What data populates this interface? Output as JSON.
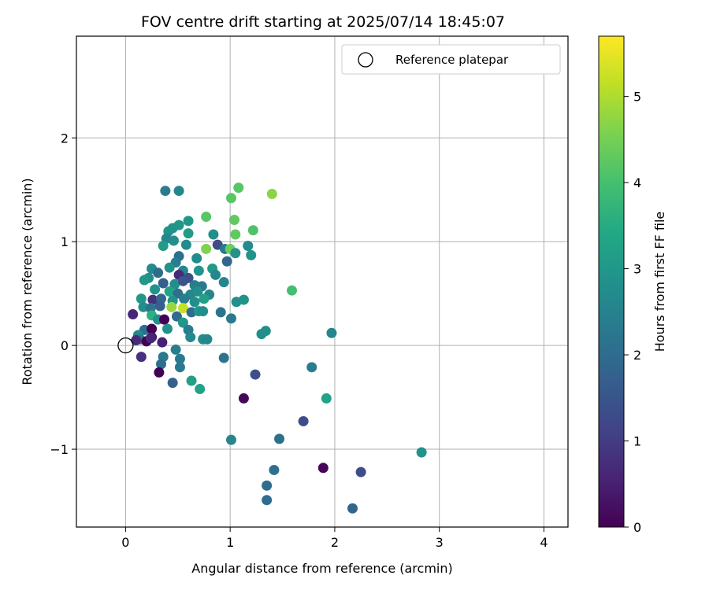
{
  "chart_data": {
    "type": "scatter",
    "title": "FOV centre drift starting at 2025/07/14 18:45:07",
    "xlabel": "Angular distance from reference (arcmin)",
    "ylabel": "Rotation from reference (arcmin)",
    "xlim": [
      -0.47,
      4.23
    ],
    "ylim": [
      -1.75,
      2.98
    ],
    "xticks": [
      0,
      1,
      2,
      3,
      4
    ],
    "xtick_labels": [
      "0",
      "1",
      "2",
      "3",
      "4"
    ],
    "yticks": [
      -1,
      0,
      1,
      2
    ],
    "ytick_labels": [
      "−1",
      "0",
      "1",
      "2"
    ],
    "grid": true,
    "legend": {
      "label": "Reference platepar",
      "position": "top-right"
    },
    "reference_point": {
      "x": 0,
      "y": 0
    },
    "colorbar": {
      "label": "Hours from first FF file",
      "range": [
        0,
        5.7
      ],
      "ticks": [
        0,
        1,
        2,
        3,
        4,
        5
      ],
      "tick_labels": [
        "0",
        "1",
        "2",
        "3",
        "4",
        "5"
      ],
      "colormap": "viridis"
    },
    "points": [
      {
        "x": 0.38,
        "y": 1.49,
        "c": 2.4
      },
      {
        "x": 0.51,
        "y": 1.49,
        "c": 2.6
      },
      {
        "x": 1.08,
        "y": 1.52,
        "c": 4.2
      },
      {
        "x": 1.4,
        "y": 1.46,
        "c": 4.7
      },
      {
        "x": 1.01,
        "y": 1.42,
        "c": 4.2
      },
      {
        "x": 1.04,
        "y": 1.21,
        "c": 4.3
      },
      {
        "x": 0.77,
        "y": 1.24,
        "c": 4.2
      },
      {
        "x": 0.6,
        "y": 1.2,
        "c": 3.0
      },
      {
        "x": 0.51,
        "y": 1.16,
        "c": 3.0
      },
      {
        "x": 0.45,
        "y": 1.13,
        "c": 2.9
      },
      {
        "x": 0.41,
        "y": 1.1,
        "c": 2.9
      },
      {
        "x": 0.6,
        "y": 1.08,
        "c": 3.1
      },
      {
        "x": 1.05,
        "y": 1.07,
        "c": 4.3
      },
      {
        "x": 1.22,
        "y": 1.11,
        "c": 4.1
      },
      {
        "x": 0.84,
        "y": 1.07,
        "c": 2.8
      },
      {
        "x": 0.39,
        "y": 1.03,
        "c": 2.6
      },
      {
        "x": 0.46,
        "y": 1.01,
        "c": 2.8
      },
      {
        "x": 0.36,
        "y": 0.96,
        "c": 3.1
      },
      {
        "x": 0.58,
        "y": 0.97,
        "c": 2.7
      },
      {
        "x": 1.17,
        "y": 0.96,
        "c": 2.7
      },
      {
        "x": 0.77,
        "y": 0.93,
        "c": 4.6
      },
      {
        "x": 0.88,
        "y": 0.97,
        "c": 1.3
      },
      {
        "x": 0.95,
        "y": 0.93,
        "c": 2.3
      },
      {
        "x": 1.0,
        "y": 0.93,
        "c": 4.4
      },
      {
        "x": 1.05,
        "y": 0.89,
        "c": 2.9
      },
      {
        "x": 1.2,
        "y": 0.87,
        "c": 2.9
      },
      {
        "x": 0.51,
        "y": 0.86,
        "c": 2.1
      },
      {
        "x": 0.68,
        "y": 0.84,
        "c": 2.7
      },
      {
        "x": 0.48,
        "y": 0.8,
        "c": 2.4
      },
      {
        "x": 0.97,
        "y": 0.81,
        "c": 1.9
      },
      {
        "x": 0.25,
        "y": 0.74,
        "c": 2.7
      },
      {
        "x": 0.31,
        "y": 0.7,
        "c": 2.0
      },
      {
        "x": 0.42,
        "y": 0.75,
        "c": 2.9
      },
      {
        "x": 0.55,
        "y": 0.72,
        "c": 2.6
      },
      {
        "x": 0.7,
        "y": 0.72,
        "c": 2.9
      },
      {
        "x": 0.83,
        "y": 0.74,
        "c": 3.1
      },
      {
        "x": 0.86,
        "y": 0.68,
        "c": 2.6
      },
      {
        "x": 0.6,
        "y": 0.65,
        "c": 1.4
      },
      {
        "x": 0.51,
        "y": 0.68,
        "c": 0.7
      },
      {
        "x": 0.22,
        "y": 0.65,
        "c": 2.8
      },
      {
        "x": 0.18,
        "y": 0.63,
        "c": 3.0
      },
      {
        "x": 0.36,
        "y": 0.6,
        "c": 1.7
      },
      {
        "x": 0.47,
        "y": 0.59,
        "c": 2.8
      },
      {
        "x": 0.55,
        "y": 0.62,
        "c": 1.5
      },
      {
        "x": 0.66,
        "y": 0.58,
        "c": 2.4
      },
      {
        "x": 0.73,
        "y": 0.57,
        "c": 2.3
      },
      {
        "x": 0.94,
        "y": 0.61,
        "c": 2.6
      },
      {
        "x": 0.28,
        "y": 0.54,
        "c": 2.9
      },
      {
        "x": 0.42,
        "y": 0.52,
        "c": 3.3
      },
      {
        "x": 0.5,
        "y": 0.5,
        "c": 2.1
      },
      {
        "x": 0.62,
        "y": 0.49,
        "c": 2.6
      },
      {
        "x": 0.69,
        "y": 0.52,
        "c": 2.8
      },
      {
        "x": 0.8,
        "y": 0.49,
        "c": 2.6
      },
      {
        "x": 0.15,
        "y": 0.45,
        "c": 3.0
      },
      {
        "x": 0.26,
        "y": 0.44,
        "c": 0.8
      },
      {
        "x": 0.34,
        "y": 0.45,
        "c": 1.9
      },
      {
        "x": 0.45,
        "y": 0.43,
        "c": 2.9
      },
      {
        "x": 0.56,
        "y": 0.45,
        "c": 2.4
      },
      {
        "x": 0.66,
        "y": 0.42,
        "c": 2.8
      },
      {
        "x": 0.75,
        "y": 0.45,
        "c": 3.2
      },
      {
        "x": 1.06,
        "y": 0.42,
        "c": 2.8
      },
      {
        "x": 1.13,
        "y": 0.44,
        "c": 2.9
      },
      {
        "x": 1.59,
        "y": 0.53,
        "c": 4.0
      },
      {
        "x": 0.17,
        "y": 0.37,
        "c": 2.8
      },
      {
        "x": 0.24,
        "y": 0.36,
        "c": 2.2
      },
      {
        "x": 0.33,
        "y": 0.38,
        "c": 1.7
      },
      {
        "x": 0.44,
        "y": 0.37,
        "c": 4.8
      },
      {
        "x": 0.55,
        "y": 0.36,
        "c": 5.2
      },
      {
        "x": 0.63,
        "y": 0.32,
        "c": 2.0
      },
      {
        "x": 0.7,
        "y": 0.33,
        "c": 3.0
      },
      {
        "x": 0.74,
        "y": 0.33,
        "c": 2.8
      },
      {
        "x": 0.91,
        "y": 0.32,
        "c": 2.2
      },
      {
        "x": 0.07,
        "y": 0.3,
        "c": 0.6
      },
      {
        "x": 0.25,
        "y": 0.29,
        "c": 3.6
      },
      {
        "x": 0.31,
        "y": 0.25,
        "c": 2.8
      },
      {
        "x": 0.37,
        "y": 0.25,
        "c": 0.0
      },
      {
        "x": 0.49,
        "y": 0.28,
        "c": 2.0
      },
      {
        "x": 0.55,
        "y": 0.22,
        "c": 3.0
      },
      {
        "x": 1.01,
        "y": 0.26,
        "c": 2.3
      },
      {
        "x": 0.18,
        "y": 0.15,
        "c": 2.1
      },
      {
        "x": 0.25,
        "y": 0.16,
        "c": 0.0
      },
      {
        "x": 0.4,
        "y": 0.16,
        "c": 2.9
      },
      {
        "x": 0.6,
        "y": 0.15,
        "c": 2.4
      },
      {
        "x": 1.34,
        "y": 0.14,
        "c": 2.8
      },
      {
        "x": 1.3,
        "y": 0.11,
        "c": 2.8
      },
      {
        "x": 1.97,
        "y": 0.12,
        "c": 2.6
      },
      {
        "x": 0.12,
        "y": 0.1,
        "c": 2.7
      },
      {
        "x": 0.25,
        "y": 0.08,
        "c": 0.3
      },
      {
        "x": 0.14,
        "y": 0.06,
        "c": 2.3
      },
      {
        "x": 0.2,
        "y": 0.04,
        "c": 0.0
      },
      {
        "x": 0.24,
        "y": 0.07,
        "c": 0.6
      },
      {
        "x": 0.35,
        "y": 0.03,
        "c": 0.5
      },
      {
        "x": 0.62,
        "y": 0.08,
        "c": 2.7
      },
      {
        "x": 0.74,
        "y": 0.06,
        "c": 2.7
      },
      {
        "x": 0.78,
        "y": 0.06,
        "c": 2.6
      },
      {
        "x": 0.1,
        "y": 0.05,
        "c": 0.7
      },
      {
        "x": 0.48,
        "y": -0.04,
        "c": 2.4
      },
      {
        "x": 0.36,
        "y": -0.11,
        "c": 2.3
      },
      {
        "x": 0.52,
        "y": -0.13,
        "c": 2.3
      },
      {
        "x": 0.15,
        "y": -0.11,
        "c": 0.8
      },
      {
        "x": 0.94,
        "y": -0.12,
        "c": 2.2
      },
      {
        "x": 0.34,
        "y": -0.18,
        "c": 2.1
      },
      {
        "x": 0.52,
        "y": -0.21,
        "c": 2.3
      },
      {
        "x": 1.78,
        "y": -0.21,
        "c": 2.4
      },
      {
        "x": 0.32,
        "y": -0.26,
        "c": 0.0
      },
      {
        "x": 1.24,
        "y": -0.28,
        "c": 1.4
      },
      {
        "x": 0.63,
        "y": -0.34,
        "c": 3.2
      },
      {
        "x": 0.45,
        "y": -0.36,
        "c": 1.8
      },
      {
        "x": 0.71,
        "y": -0.42,
        "c": 3.3
      },
      {
        "x": 1.13,
        "y": -0.51,
        "c": 0.1
      },
      {
        "x": 1.92,
        "y": -0.51,
        "c": 3.3
      },
      {
        "x": 1.7,
        "y": -0.73,
        "c": 1.3
      },
      {
        "x": 1.01,
        "y": -0.91,
        "c": 2.6
      },
      {
        "x": 1.47,
        "y": -0.9,
        "c": 2.1
      },
      {
        "x": 2.83,
        "y": -1.03,
        "c": 2.9
      },
      {
        "x": 1.89,
        "y": -1.18,
        "c": 0.1
      },
      {
        "x": 1.42,
        "y": -1.2,
        "c": 2.1
      },
      {
        "x": 2.25,
        "y": -1.22,
        "c": 1.3
      },
      {
        "x": 1.35,
        "y": -1.35,
        "c": 2.0
      },
      {
        "x": 1.35,
        "y": -1.49,
        "c": 2.0
      },
      {
        "x": 2.17,
        "y": -1.57,
        "c": 1.9
      }
    ]
  }
}
